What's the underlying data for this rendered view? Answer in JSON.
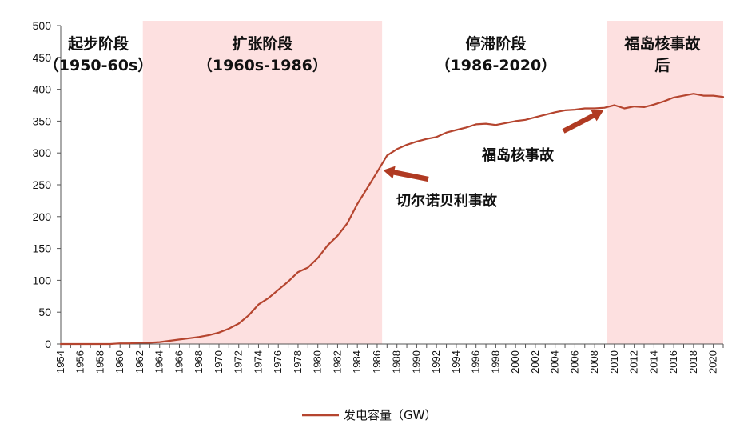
{
  "chart_data": {
    "type": "line",
    "title": "",
    "xlabel": "",
    "ylabel": "",
    "ylim": [
      0,
      500
    ],
    "yticks": [
      0,
      50,
      100,
      150,
      200,
      250,
      300,
      350,
      400,
      450,
      500
    ],
    "xlim": [
      1954,
      2021
    ],
    "xticks": [
      1954,
      1956,
      1958,
      1960,
      1962,
      1964,
      1966,
      1968,
      1970,
      1972,
      1974,
      1976,
      1978,
      1980,
      1982,
      1984,
      1986,
      1988,
      1990,
      1992,
      1994,
      1996,
      1998,
      2000,
      2002,
      2004,
      2006,
      2008,
      2010,
      2012,
      2014,
      2016,
      2018,
      2020
    ],
    "grid": false,
    "legend_position": "bottom",
    "line_color": "#b5452f",
    "shade_color": "#fde0e0",
    "series": [
      {
        "name": "发电容量（GW）",
        "x": [
          1954,
          1955,
          1956,
          1957,
          1958,
          1959,
          1960,
          1961,
          1962,
          1963,
          1964,
          1965,
          1966,
          1967,
          1968,
          1969,
          1970,
          1971,
          1972,
          1973,
          1974,
          1975,
          1976,
          1977,
          1978,
          1979,
          1980,
          1981,
          1982,
          1983,
          1984,
          1985,
          1986,
          1987,
          1988,
          1989,
          1990,
          1991,
          1992,
          1993,
          1994,
          1995,
          1996,
          1997,
          1998,
          1999,
          2000,
          2001,
          2002,
          2003,
          2004,
          2005,
          2006,
          2007,
          2008,
          2009,
          2010,
          2011,
          2012,
          2013,
          2014,
          2015,
          2016,
          2017,
          2018,
          2019,
          2020,
          2021
        ],
        "values": [
          0,
          0,
          0,
          0,
          0,
          0,
          1,
          1,
          2,
          2,
          3,
          5,
          7,
          9,
          11,
          14,
          18,
          24,
          32,
          45,
          62,
          72,
          85,
          98,
          113,
          120,
          135,
          155,
          170,
          190,
          220,
          245,
          270,
          296,
          306,
          313,
          318,
          322,
          325,
          332,
          336,
          340,
          345,
          346,
          344,
          347,
          350,
          352,
          356,
          360,
          364,
          367,
          368,
          370,
          370,
          371,
          375,
          370,
          373,
          372,
          376,
          381,
          387,
          390,
          393,
          390,
          390,
          388
        ]
      }
    ],
    "shaded_periods": [
      {
        "from": 1962.3,
        "to": 1986.5,
        "label_lines": [
          "扩张阶段",
          "（1960s-1986）"
        ]
      },
      {
        "from": 2009.2,
        "to": 2021,
        "label_lines": [
          "福岛核事故",
          "后"
        ]
      }
    ],
    "unshaded_period_labels": [
      {
        "center_year": 1957.8,
        "label_lines": [
          "起步阶段",
          "（1950-60s）"
        ]
      },
      {
        "center_year": 1998.0,
        "label_lines": [
          "停滞阶段",
          "（1986-2020）"
        ]
      }
    ],
    "annotations": [
      {
        "text": "切尔诺贝利事故",
        "arrow_to": [
          1986.6,
          273
        ]
      },
      {
        "text": "福岛核事故",
        "arrow_to": [
          2008.9,
          367
        ]
      }
    ]
  }
}
